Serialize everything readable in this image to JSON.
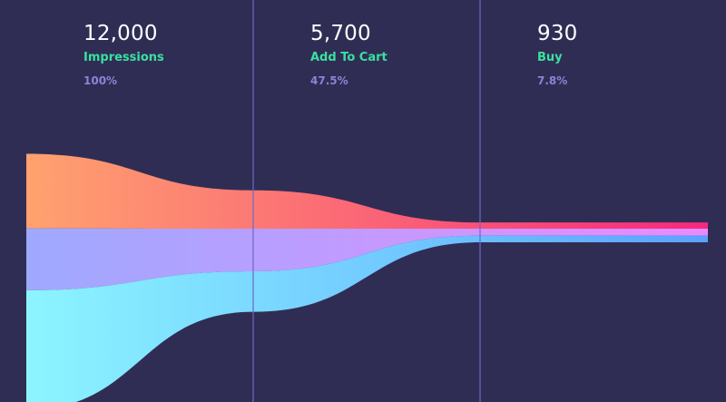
{
  "chart_data": {
    "type": "area",
    "stages": [
      {
        "value": "12,000",
        "label": "Impressions",
        "percent": "100%"
      },
      {
        "value": "5,700",
        "label": "Add To Cart",
        "percent": "47.5%"
      },
      {
        "value": "930",
        "label": "Buy",
        "percent": "7.8%"
      }
    ],
    "series": [
      {
        "values": [
          3500,
          1800,
          290
        ],
        "color_start": "#ffa26f",
        "color_end": "#f6287d"
      },
      {
        "values": [
          2900,
          2000,
          330
        ],
        "color_start": "#9ea9ff",
        "color_end": "#e88bff"
      },
      {
        "values": [
          5600,
          1900,
          310
        ],
        "color_start": "#8cf5ff",
        "color_end": "#5aa2ff"
      }
    ],
    "grid": true
  },
  "colors": {
    "background": "#302d54",
    "divider": "#6d69c8",
    "value_text": "#ffffff",
    "label_text": "#39e0a0",
    "percent_text": "#8d83d6"
  }
}
